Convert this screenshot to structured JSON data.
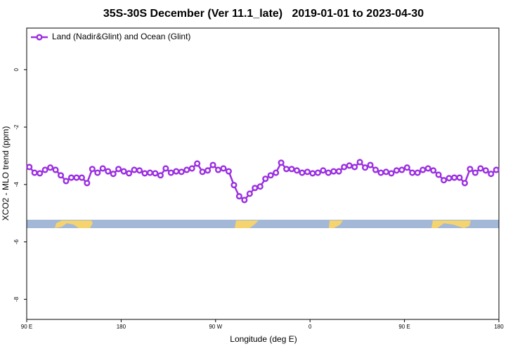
{
  "chart_data": {
    "type": "line",
    "title": "35S-30S December (Ver 11.1_late)   2019-01-01 to 2023-04-30",
    "xlabel": "Longitude (deg E)",
    "ylabel": "XCO2 - MLO trend (ppm)",
    "xlim": [
      90,
      540
    ],
    "ylim": [
      -8.7,
      1.45
    ],
    "xticks": [
      {
        "value": 90,
        "label": "90 E"
      },
      {
        "value": 180,
        "label": "180"
      },
      {
        "value": 270,
        "label": "90 W"
      },
      {
        "value": 360,
        "label": "0"
      },
      {
        "value": 450,
        "label": "90 E"
      },
      {
        "value": 540,
        "label": "180"
      }
    ],
    "yticks": [
      0,
      -2,
      -4,
      -6,
      -8
    ],
    "legend": "top-left",
    "x": [
      92.5,
      97.5,
      102.5,
      107.5,
      112.5,
      117.5,
      122.5,
      127.5,
      132.5,
      137.5,
      142.5,
      147.5,
      152.5,
      157.5,
      162.5,
      167.5,
      172.5,
      177.5,
      182.5,
      187.5,
      192.5,
      197.5,
      202.5,
      207.5,
      212.5,
      217.5,
      222.5,
      227.5,
      232.5,
      237.5,
      242.5,
      247.5,
      252.5,
      257.5,
      262.5,
      267.5,
      272.5,
      277.5,
      282.5,
      287.5,
      292.5,
      297.5,
      302.5,
      307.5,
      312.5,
      317.5,
      322.5,
      327.5,
      332.5,
      337.5,
      342.5,
      347.5,
      352.5,
      357.5,
      362.5,
      367.5,
      372.5,
      377.5,
      382.5,
      387.5,
      392.5,
      397.5,
      402.5,
      407.5,
      412.5,
      417.5,
      422.5,
      427.5,
      432.5,
      437.5,
      442.5,
      447.5,
      452.5,
      457.5,
      462.5,
      467.5,
      472.5,
      477.5,
      482.5,
      487.5,
      492.5,
      497.5,
      502.5,
      507.5,
      512.5,
      517.5,
      522.5,
      527.5,
      532.5,
      537.5
    ],
    "series": [
      {
        "name": "Land (Nadir&Glint) and Ocean (Glint)",
        "color": "#9b30e0",
        "values": [
          -3.39,
          -3.59,
          -3.61,
          -3.49,
          -3.41,
          -3.49,
          -3.68,
          -3.88,
          -3.76,
          -3.76,
          -3.76,
          -3.95,
          -3.46,
          -3.59,
          -3.44,
          -3.54,
          -3.63,
          -3.46,
          -3.54,
          -3.61,
          -3.49,
          -3.51,
          -3.61,
          -3.59,
          -3.61,
          -3.68,
          -3.44,
          -3.59,
          -3.54,
          -3.56,
          -3.49,
          -3.44,
          -3.27,
          -3.56,
          -3.51,
          -3.32,
          -3.49,
          -3.44,
          -3.54,
          -4.02,
          -4.41,
          -4.54,
          -4.32,
          -4.12,
          -4.07,
          -3.8,
          -3.68,
          -3.59,
          -3.24,
          -3.46,
          -3.46,
          -3.51,
          -3.59,
          -3.56,
          -3.61,
          -3.59,
          -3.51,
          -3.59,
          -3.54,
          -3.54,
          -3.39,
          -3.34,
          -3.39,
          -3.22,
          -3.41,
          -3.32,
          -3.49,
          -3.59,
          -3.56,
          -3.61,
          -3.51,
          -3.49,
          -3.41,
          -3.59,
          -3.59,
          -3.49,
          -3.44,
          -3.51,
          -3.66,
          -3.85,
          -3.78,
          -3.76,
          -3.76,
          -3.95,
          -3.46,
          -3.59,
          -3.44,
          -3.51,
          -3.63,
          -3.49
        ]
      }
    ]
  }
}
